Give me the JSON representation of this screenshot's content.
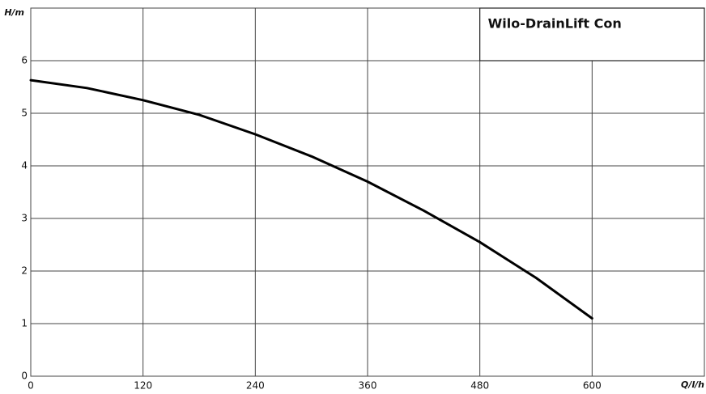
{
  "chart_data": {
    "type": "line",
    "title": "Wilo-DrainLift Con",
    "y_label": "H/m",
    "x_label": "Q/l/h",
    "x": [
      0,
      60,
      120,
      180,
      240,
      300,
      360,
      420,
      480,
      540,
      600
    ],
    "series": [
      {
        "name": "Wilo-DrainLift Con",
        "color": "#000000",
        "values": [
          5.63,
          5.48,
          5.25,
          4.97,
          4.6,
          4.18,
          3.7,
          3.15,
          2.55,
          1.87,
          1.1
        ]
      }
    ],
    "xlim": [
      0,
      720
    ],
    "xticks": [
      0,
      120,
      240,
      360,
      480,
      600
    ],
    "ylim": [
      0,
      7
    ],
    "yticks": [
      0,
      1,
      2,
      3,
      4,
      5,
      6
    ],
    "grid": true
  }
}
